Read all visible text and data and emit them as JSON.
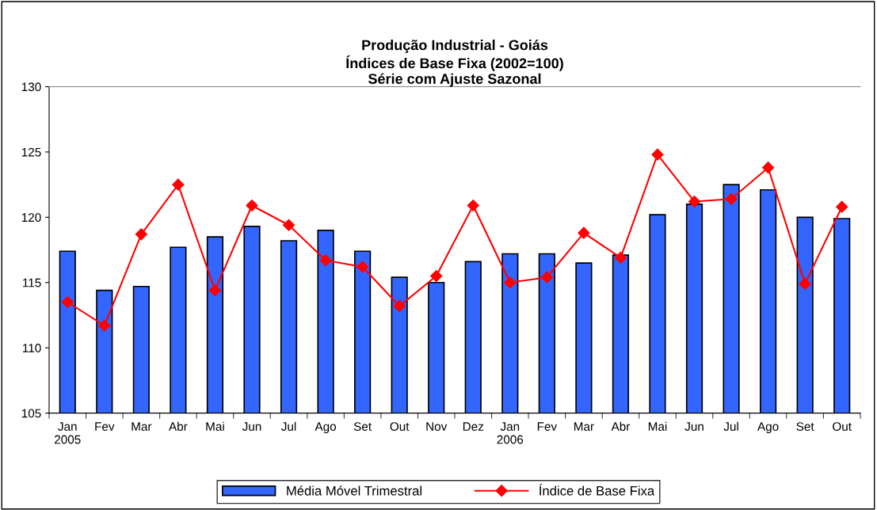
{
  "chart_data": {
    "type": "bar",
    "title": "Produção Industrial - Goiás\nÍndices de Base Fixa (2002=100)\nSérie com Ajuste Sazonal",
    "categories": [
      "Jan\n2005",
      "Fev",
      "Mar",
      "Abr",
      "Mai",
      "Jun",
      "Jul",
      "Ago",
      "Set",
      "Out",
      "Nov",
      "Dez",
      "Jan\n2006",
      "Fev",
      "Mar",
      "Abr",
      "Mai",
      "Jun",
      "Jul",
      "Ago",
      "Set",
      "Out"
    ],
    "series": [
      {
        "name": "Média Móvel Trimestral",
        "color": "#3366ff",
        "values": [
          117.4,
          114.4,
          114.7,
          117.7,
          118.5,
          119.3,
          118.2,
          119.0,
          117.4,
          115.4,
          115.0,
          116.6,
          117.2,
          117.2,
          116.5,
          117.1,
          120.2,
          121.0,
          122.5,
          122.1,
          120.0,
          119.9
        ]
      },
      {
        "name": "Índice de Base Fixa",
        "type": "line",
        "color": "#ff0000",
        "marker": "diamond",
        "line_style": "solid",
        "values": [
          113.5,
          111.7,
          118.7,
          122.5,
          114.4,
          120.9,
          119.4,
          116.7,
          116.2,
          113.2,
          115.5,
          120.9,
          115.0,
          115.4,
          118.8,
          116.9,
          124.8,
          121.2,
          121.4,
          123.8,
          114.9,
          120.8
        ]
      }
    ],
    "ylim": [
      105,
      130
    ],
    "yticks": [
      105,
      110,
      115,
      120,
      125,
      130
    ],
    "grid": false,
    "legend": "bottom"
  }
}
